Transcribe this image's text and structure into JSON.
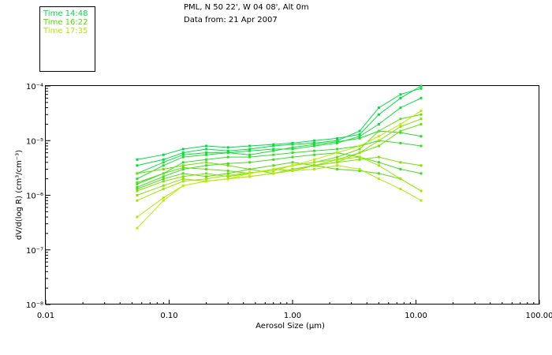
{
  "header": {
    "line1": "PML, N 50 22', W 04 08', Alt 0m",
    "line2": "Data from: 21 Apr 2007"
  },
  "legend": [
    {
      "label": "Time 14:48",
      "color": "#00dd44"
    },
    {
      "label": "Time 16:22",
      "color": "#55dd00"
    },
    {
      "label": "Time 17:35",
      "color": "#aaee00"
    }
  ],
  "chart_data": {
    "type": "line",
    "xlabel": "Aerosol Size (μm)",
    "ylabel": "dV/d(log R) (cm³/cm⁻³)",
    "x_scale": "log",
    "y_scale": "log",
    "xlim": [
      0.01,
      100
    ],
    "ylim": [
      1e-08,
      0.0001
    ],
    "x_ticks": [
      "0.01",
      "0.10",
      "1.00",
      "10.00",
      "100.00"
    ],
    "y_ticks": [
      "10⁻⁴",
      "10⁻⁵",
      "10⁻⁶",
      "10⁻⁷",
      "10⁻⁸"
    ],
    "grid": false,
    "x": [
      0.055,
      0.09,
      0.13,
      0.2,
      0.3,
      0.45,
      0.7,
      1.0,
      1.5,
      2.3,
      3.5,
      5.0,
      7.5,
      11.0
    ],
    "series": [
      {
        "color": "#00dd44",
        "values": [
          4.5e-06,
          5.5e-06,
          7e-06,
          8e-06,
          7.5e-06,
          8e-06,
          8.5e-06,
          9e-06,
          1e-05,
          1.1e-05,
          1.3e-05,
          3e-05,
          6e-05,
          0.0001
        ]
      },
      {
        "color": "#00e040",
        "values": [
          3.5e-06,
          4.5e-06,
          6e-06,
          7e-06,
          6.5e-06,
          7e-06,
          8e-06,
          8.5e-06,
          9e-06,
          1e-05,
          1.5e-05,
          4e-05,
          7e-05,
          9e-05
        ]
      },
      {
        "color": "#10e038",
        "values": [
          2.5e-06,
          4e-06,
          5.5e-06,
          6e-06,
          6e-06,
          6.5e-06,
          7e-06,
          7e-06,
          8e-06,
          9e-06,
          1.2e-05,
          2e-05,
          4e-05,
          6e-05
        ]
      },
      {
        "color": "#20dd30",
        "values": [
          2e-06,
          3.5e-06,
          5e-06,
          5.5e-06,
          6e-06,
          5.5e-06,
          6.5e-06,
          7.5e-06,
          8.5e-06,
          9.5e-06,
          1.1e-05,
          1.5e-05,
          1.4e-05,
          1.2e-05
        ]
      },
      {
        "color": "#30e028",
        "values": [
          1.6e-06,
          2.5e-06,
          4e-06,
          4.5e-06,
          5e-06,
          5e-06,
          5.5e-06,
          6e-06,
          6.5e-06,
          7e-06,
          8e-06,
          1e-05,
          9e-06,
          8e-06
        ]
      },
      {
        "color": "#40dd20",
        "values": [
          1.4e-06,
          2.2e-06,
          3e-06,
          3.5e-06,
          3.8e-06,
          4e-06,
          4.5e-06,
          5e-06,
          5.5e-06,
          6e-06,
          5e-06,
          4e-06,
          3e-06,
          2.5e-06
        ]
      },
      {
        "color": "#50dd18",
        "values": [
          1.3e-06,
          2e-06,
          2.5e-06,
          2.2e-06,
          2.5e-06,
          3e-06,
          3.5e-06,
          4e-06,
          3.5e-06,
          3e-06,
          2.8e-06,
          2.5e-06,
          2e-06,
          1.2e-06
        ]
      },
      {
        "color": "#60e010",
        "values": [
          1.7e-06,
          2.5e-06,
          3.2e-06,
          3e-06,
          2.8e-06,
          2.5e-06,
          3e-06,
          3.5e-06,
          4e-06,
          5e-06,
          7e-06,
          1.5e-05,
          2.5e-05,
          3e-05
        ]
      },
      {
        "color": "#70e008",
        "values": [
          2.5e-06,
          3e-06,
          3.5e-06,
          4e-06,
          3.5e-06,
          3e-06,
          2.5e-06,
          3e-06,
          3.5e-06,
          4.5e-06,
          6e-06,
          8e-06,
          1.5e-05,
          2e-05
        ]
      },
      {
        "color": "#80e000",
        "values": [
          1.2e-06,
          1.8e-06,
          2.2e-06,
          2.5e-06,
          2.2e-06,
          2.5e-06,
          3e-06,
          2.8e-06,
          3.5e-06,
          4e-06,
          4.5e-06,
          5e-06,
          4e-06,
          3.5e-06
        ]
      },
      {
        "color": "#90e000",
        "values": [
          1e-06,
          1.5e-06,
          2e-06,
          1.8e-06,
          2e-06,
          2.2e-06,
          2.5e-06,
          3e-06,
          3.5e-06,
          4e-06,
          6e-06,
          1e-05,
          1.8e-05,
          2.5e-05
        ]
      },
      {
        "color": "#a0e600",
        "values": [
          8e-07,
          1.3e-06,
          1.8e-06,
          2e-06,
          2.3e-06,
          2.6e-06,
          2.8e-06,
          3.5e-06,
          4e-06,
          4.5e-06,
          5e-06,
          3.5e-06,
          2e-06,
          1.2e-06
        ]
      },
      {
        "color": "#b0ea00",
        "values": [
          4e-07,
          9e-07,
          1.5e-06,
          1.8e-06,
          2e-06,
          2.2e-06,
          2.5e-06,
          2.8e-06,
          3e-06,
          3.5e-06,
          3e-06,
          2e-06,
          1.3e-06,
          8e-07
        ]
      },
      {
        "color": "#bbee00",
        "values": [
          2.5e-07,
          8e-07,
          1.5e-06,
          1.8e-06,
          2e-06,
          2.5e-06,
          3e-06,
          3.5e-06,
          4.5e-06,
          6e-06,
          8e-06,
          1.2e-05,
          2e-05,
          3.5e-05
        ]
      }
    ]
  }
}
